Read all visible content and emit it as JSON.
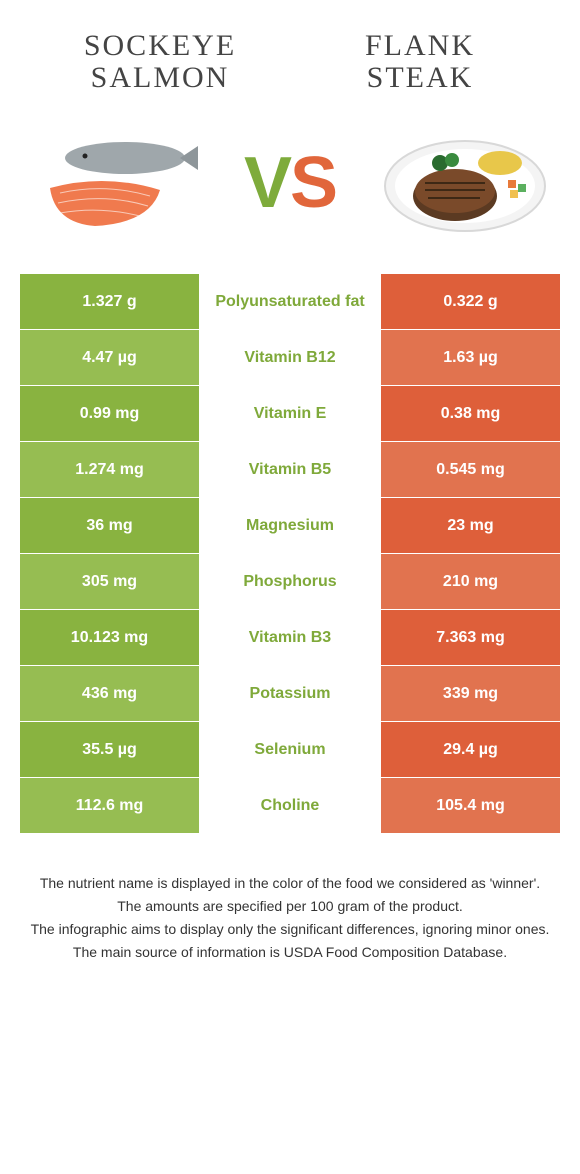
{
  "header": {
    "left_title": "SOCKEYE SALMON",
    "right_title": "FLANK STEAK",
    "vs_v": "V",
    "vs_s": "S"
  },
  "colors": {
    "left_odd": "#89b340",
    "left_even": "#96bd52",
    "right_odd": "#de5f3a",
    "right_even": "#e1734f",
    "nutrient_winner_left": "#7fa93a",
    "nutrient_winner_right": "#d85a35",
    "background": "#ffffff",
    "value_text": "#ffffff",
    "nutrient_fontsize": 16,
    "value_fontsize": 16,
    "title_fontsize": 30,
    "vs_fontsize": 72
  },
  "rows": [
    {
      "left": "1.327 g",
      "nutrient": "Polyunsaturated fat",
      "right": "0.322 g",
      "winner": "left"
    },
    {
      "left": "4.47 µg",
      "nutrient": "Vitamin B12",
      "right": "1.63 µg",
      "winner": "left"
    },
    {
      "left": "0.99 mg",
      "nutrient": "Vitamin E",
      "right": "0.38 mg",
      "winner": "left"
    },
    {
      "left": "1.274 mg",
      "nutrient": "Vitamin B5",
      "right": "0.545 mg",
      "winner": "left"
    },
    {
      "left": "36 mg",
      "nutrient": "Magnesium",
      "right": "23 mg",
      "winner": "left"
    },
    {
      "left": "305 mg",
      "nutrient": "Phosphorus",
      "right": "210 mg",
      "winner": "left"
    },
    {
      "left": "10.123 mg",
      "nutrient": "Vitamin B3",
      "right": "7.363 mg",
      "winner": "left"
    },
    {
      "left": "436 mg",
      "nutrient": "Potassium",
      "right": "339 mg",
      "winner": "left"
    },
    {
      "left": "35.5 µg",
      "nutrient": "Selenium",
      "right": "29.4 µg",
      "winner": "left"
    },
    {
      "left": "112.6 mg",
      "nutrient": "Choline",
      "right": "105.4 mg",
      "winner": "left"
    }
  ],
  "footnotes": [
    "The nutrient name is displayed in the color of the food we considered as 'winner'.",
    "The amounts are specified per 100 gram of the product.",
    "The infographic aims to display only the significant differences, ignoring minor ones.",
    "The main source of information is USDA Food Composition Database."
  ]
}
